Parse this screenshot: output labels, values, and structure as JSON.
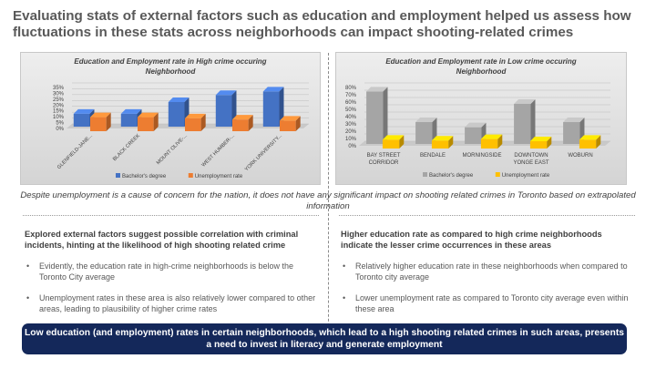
{
  "slide": {
    "title": "Evaluating stats of external factors such as education and employment helped us assess how fluctuations in these stats across neighborhoods can impact shooting-related crimes",
    "note": "Despite unemployment is a cause of concern for the nation, it does not have any significant impact on shooting related crimes in Toronto based on extrapolated information",
    "left": {
      "heading": "Explored external factors suggest possible correlation with criminal incidents, hinting at the likelihood of high shooting related crime",
      "bullets": [
        "Evidently, the education rate in high-crime neighborhoods is below the Toronto City average",
        "Unemployment rates in these area is also relatively lower compared to other areas, leading to plausibility of higher crime rates"
      ]
    },
    "right": {
      "heading": "Higher education rate as compared to high crime neighborhoods indicate the lesser crime occurrences in these areas",
      "bullets": [
        "Relatively higher education rate in these neighborhoods when compared to Toronto city average",
        "Lower unemployment rate as compared to Toronto city average even within these area"
      ]
    },
    "banner": "Low education (and employment) rates in certain neighborhoods, which lead to a high shooting related crimes in such areas, presents a need to invest in literacy and generate employment"
  },
  "chart_data": [
    {
      "type": "bar",
      "title": "Education and Employment rate in High crime occuring Neighborhood",
      "categories": [
        "GLENFIELD-JANE...",
        "BLACK CREEK",
        "MOUNT OLIVE-...",
        "WEST HUMBER-...",
        "YORK UNIVERSITY..."
      ],
      "series": [
        {
          "name": "Bachelor's degree",
          "values": [
            11,
            11,
            21,
            27,
            30
          ],
          "color": "#4472c4"
        },
        {
          "name": "Unemployment rate",
          "values": [
            12,
            12,
            11,
            10,
            9
          ],
          "color": "#ed7d31"
        }
      ],
      "yticks": [
        "0%",
        "5%",
        "10%",
        "15%",
        "20%",
        "25%",
        "30%",
        "35%"
      ],
      "ylim": [
        0,
        35
      ],
      "legend": "bottom",
      "three_d": true
    },
    {
      "type": "bar",
      "title": "Education and Employment rate in Low crime occuring Neighborhood",
      "categories": [
        "BAY STREET CORRIDOR",
        "BENDALE",
        "MORNINGSIDE",
        "DOWNTOWN YONGE EAST",
        "WOBURN"
      ],
      "series": [
        {
          "name": "Bachelor's degree",
          "values": [
            72,
            30,
            23,
            55,
            30
          ],
          "color": "#a5a5a5"
        },
        {
          "name": "Unemployment rate",
          "values": [
            12,
            11,
            13,
            10,
            12
          ],
          "color": "#ffc000"
        }
      ],
      "yticks": [
        "0%",
        "10%",
        "20%",
        "30%",
        "40%",
        "50%",
        "60%",
        "70%",
        "80%"
      ],
      "ylim": [
        0,
        80
      ],
      "legend": "bottom",
      "three_d": true
    }
  ]
}
